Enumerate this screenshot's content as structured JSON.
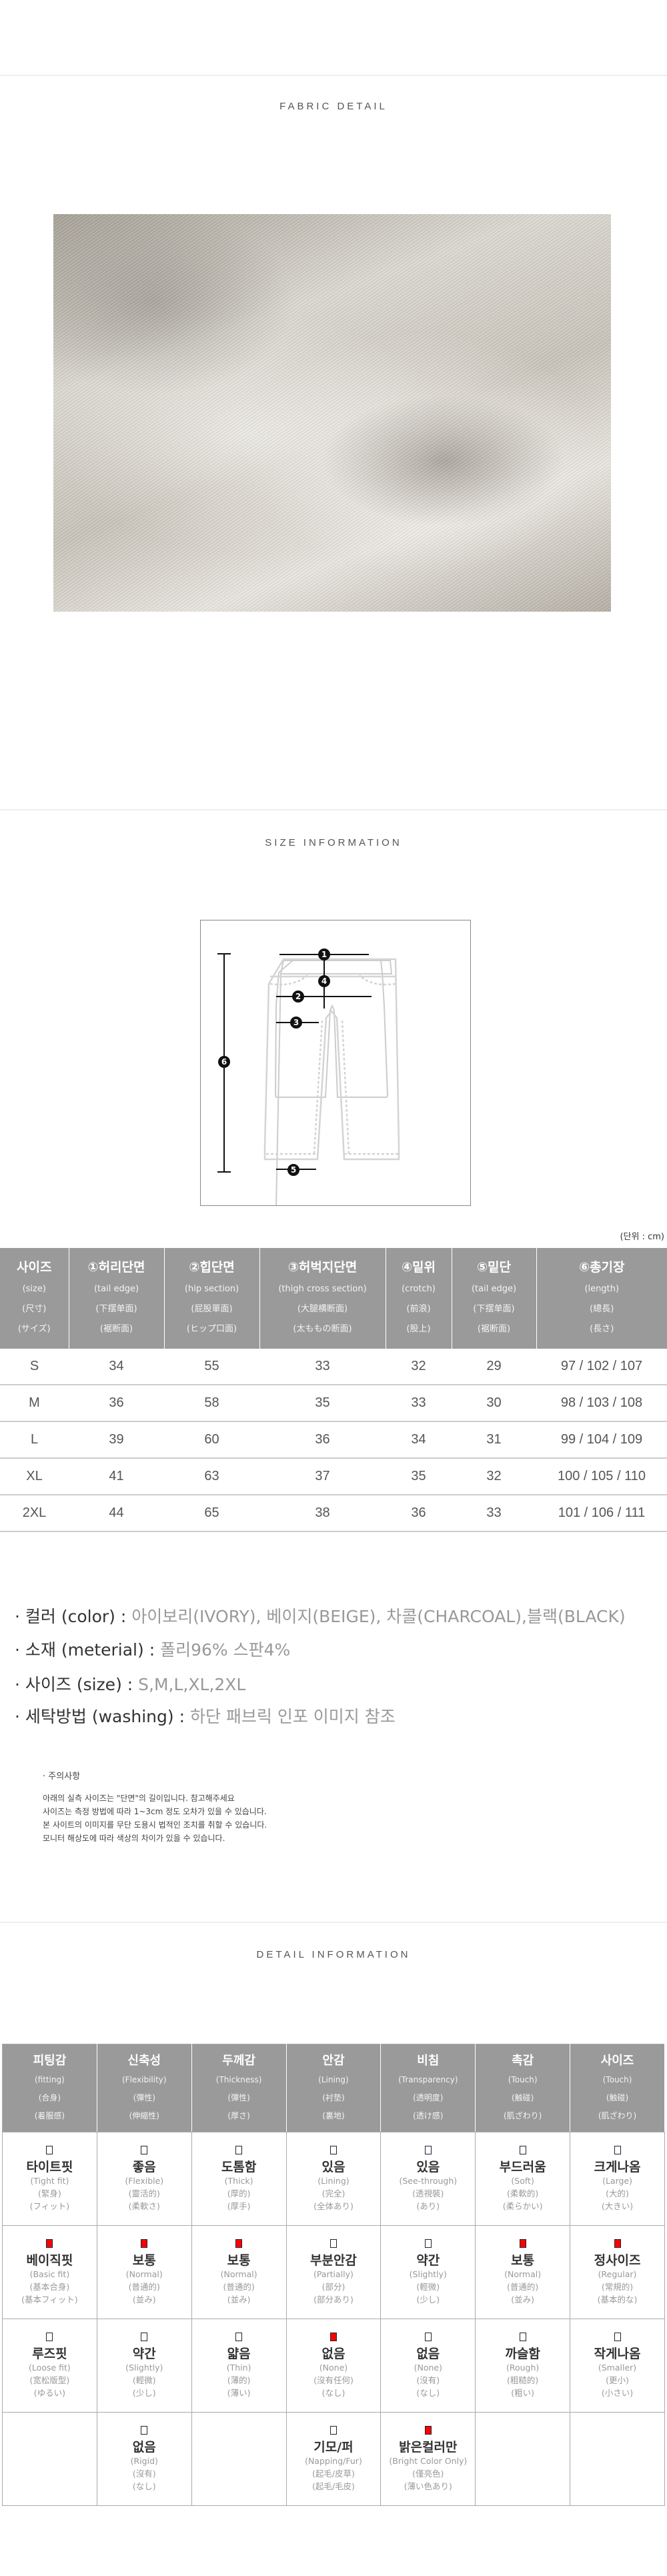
{
  "fabric": {
    "title": "FABRIC DETAIL"
  },
  "size_info": {
    "title": "SIZE INFORMATION",
    "diagram_markers": [
      "1",
      "2",
      "3",
      "4",
      "5",
      "6"
    ],
    "unit": "(단위 : cm)",
    "headers": [
      {
        "label": "사이즈",
        "sub": [
          "(size)",
          "(尺寸)",
          "(サイズ)"
        ]
      },
      {
        "label": "①허리단면",
        "sub": [
          "(tail edge)",
          "(下摆单面)",
          "(裾断面)"
        ]
      },
      {
        "label": "②힙단면",
        "sub": [
          "(hip section)",
          "(屁股單面)",
          "(ヒップ口面)"
        ]
      },
      {
        "label": "③허벅지단면",
        "sub": [
          "(thigh cross section)",
          "(大腿横断面)",
          "(太ももの断面)"
        ]
      },
      {
        "label": "④밑위",
        "sub": [
          "(crotch)",
          "(前浪)",
          "(股上)"
        ]
      },
      {
        "label": "⑤밑단",
        "sub": [
          "(tail edge)",
          "(下摆单面)",
          "(裾断面)"
        ]
      },
      {
        "label": "⑥총기장",
        "sub": [
          "(length)",
          "(總長)",
          "(長さ)"
        ]
      }
    ],
    "rows": [
      [
        "S",
        "34",
        "55",
        "33",
        "32",
        "29",
        "97 / 102 / 107"
      ],
      [
        "M",
        "36",
        "58",
        "35",
        "33",
        "30",
        "98 / 103 / 108"
      ],
      [
        "L",
        "39",
        "60",
        "36",
        "34",
        "31",
        "99 / 104 / 109"
      ],
      [
        "XL",
        "41",
        "63",
        "37",
        "35",
        "32",
        "100 / 105 / 110"
      ],
      [
        "2XL",
        "44",
        "65",
        "38",
        "36",
        "33",
        "101 / 106 / 111"
      ]
    ]
  },
  "product_info": [
    {
      "label": "· 컬러 (color) : ",
      "value": "아이보리(IVORY), 베이지(BEIGE), 차콜(CHARCOAL),블랙(BLACK)"
    },
    {
      "label": "· 소재 (meterial) : ",
      "value": "폴리96% 스판4%"
    },
    {
      "label": "· 사이즈 (size) : ",
      "value": "S,M,L,XL,2XL"
    },
    {
      "label": "· 세탁방법 (washing) : ",
      "value": "하단 패브릭 인포 이미지 참조"
    }
  ],
  "notice": {
    "title": "· 주의사항",
    "lines": [
      "아래의 실측 사이즈는 \"단면\"의 길이입니다. 참고해주세요",
      "사이즈는 측정 방법에 따라 1~3cm 정도 오차가 있을 수 있습니다.",
      "본 사이트의 이미지를 무단 도용시 법적인 조치를 취할 수 있습니다.",
      "모니터 해상도에 따라 색상의 차이가 있을 수 있습니다."
    ]
  },
  "detail_info": {
    "title": "DETAIL INFORMATION",
    "accent_color": "#ff0000",
    "headers": [
      {
        "label": "피팅감",
        "sub": [
          "(fitting)",
          "(合身)",
          "(着服感)"
        ]
      },
      {
        "label": "신축성",
        "sub": [
          "(Flexibility)",
          "(彈性)",
          "(伸縮性)"
        ]
      },
      {
        "label": "두께감",
        "sub": [
          "(Thickness)",
          "(彈性)",
          "(厚さ)"
        ]
      },
      {
        "label": "안감",
        "sub": [
          "(Lining)",
          "(衬垫)",
          "(裏地)"
        ]
      },
      {
        "label": "비침",
        "sub": [
          "(Transparency)",
          "(透明度)",
          "(透け感)"
        ]
      },
      {
        "label": "촉감",
        "sub": [
          "(Touch)",
          "(触碰)",
          "(肌ざわり)"
        ]
      },
      {
        "label": "사이즈",
        "sub": [
          "(Touch)",
          "(触碰)",
          "(肌ざわり)"
        ]
      }
    ],
    "rows": [
      [
        {
          "label": "타이트핏",
          "sub": [
            "(Tight fit)",
            "(緊身)",
            "(フィット)"
          ],
          "checked": false
        },
        {
          "label": "좋음",
          "sub": [
            "(Flexible)",
            "(靈活的)",
            "(柔軟さ)"
          ],
          "checked": false
        },
        {
          "label": "도톰함",
          "sub": [
            "(Thick)",
            "(厚的)",
            "(厚手)"
          ],
          "checked": false
        },
        {
          "label": "있음",
          "sub": [
            "(Lining)",
            "(完全)",
            "(全体あり)"
          ],
          "checked": false
        },
        {
          "label": "있음",
          "sub": [
            "(See-through)",
            "(透視裝)",
            "(あり)"
          ],
          "checked": false
        },
        {
          "label": "부드러움",
          "sub": [
            "(Soft)",
            "(柔軟的)",
            "(柔らかい)"
          ],
          "checked": false
        },
        {
          "label": "크게나옴",
          "sub": [
            "(Large)",
            "(大的)",
            "(大きい)"
          ],
          "checked": false
        }
      ],
      [
        {
          "label": "베이직핏",
          "sub": [
            "(Basic fit)",
            "(基本合身)",
            "(基本フィット)"
          ],
          "checked": true
        },
        {
          "label": "보통",
          "sub": [
            "(Normal)",
            "(普通的)",
            "(並み)"
          ],
          "checked": true
        },
        {
          "label": "보통",
          "sub": [
            "(Normal)",
            "(普通的)",
            "(並み)"
          ],
          "checked": true
        },
        {
          "label": "부분안감",
          "sub": [
            "(Partially)",
            "(部分)",
            "(部分あり)"
          ],
          "checked": false
        },
        {
          "label": "약간",
          "sub": [
            "(Slightly)",
            "(輕微)",
            "(少し)"
          ],
          "checked": false
        },
        {
          "label": "보통",
          "sub": [
            "(Normal)",
            "(普通的)",
            "(並み)"
          ],
          "checked": true
        },
        {
          "label": "정사이즈",
          "sub": [
            "(Regular)",
            "(常規的)",
            "(基本的な)"
          ],
          "checked": true
        }
      ],
      [
        {
          "label": "루즈핏",
          "sub": [
            "(Loose fit)",
            "(宽松版型)",
            "(ゆるい)"
          ],
          "checked": false
        },
        {
          "label": "약간",
          "sub": [
            "(Slightly)",
            "(輕微)",
            "(少し)"
          ],
          "checked": false
        },
        {
          "label": "얇음",
          "sub": [
            "(Thin)",
            "(薄的)",
            "(薄い)"
          ],
          "checked": false
        },
        {
          "label": "없음",
          "sub": [
            "(None)",
            "(沒有任何)",
            "(なし)"
          ],
          "checked": true
        },
        {
          "label": "없음",
          "sub": [
            "(None)",
            "(沒有)",
            "(なし)"
          ],
          "checked": false
        },
        {
          "label": "까슬함",
          "sub": [
            "(Rough)",
            "(粗糙的)",
            "(粗い)"
          ],
          "checked": false
        },
        {
          "label": "작게나옴",
          "sub": [
            "(Smaller)",
            "(更小)",
            "(小さい)"
          ],
          "checked": false
        }
      ],
      [
        null,
        {
          "label": "없음",
          "sub": [
            "(Rigid)",
            "(沒有)",
            "(なし)"
          ],
          "checked": false
        },
        null,
        {
          "label": "기모/퍼",
          "sub": [
            "(Napping/Fur)",
            "(起毛/皮草)",
            "(起毛/毛皮)"
          ],
          "checked": false
        },
        {
          "label": "밝은컬러만",
          "sub": [
            "(Bright Color Only)",
            "(僅亮色)",
            "(薄い色あり)"
          ],
          "checked": true
        },
        null,
        null
      ]
    ]
  }
}
